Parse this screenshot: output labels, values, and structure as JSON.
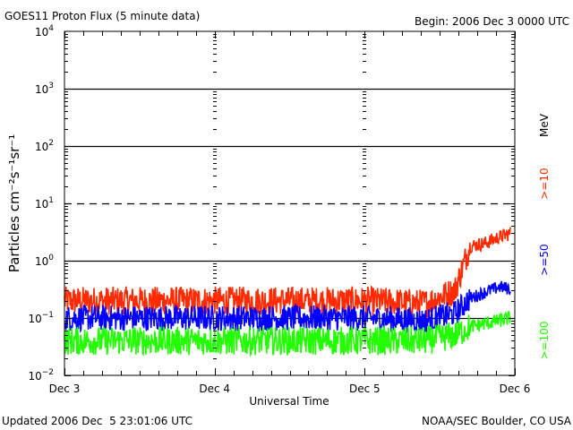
{
  "chart_data": {
    "type": "line",
    "title": "GOES11 Proton Flux (5 minute data)",
    "begin_label": "Begin: 2006 Dec 3 0000 UTC",
    "xlabel": "Universal Time",
    "ylabel": "Particles cm⁻²s⁻¹sr⁻¹",
    "yscale": "log",
    "ylim": [
      0.01,
      10000
    ],
    "y_ticks": [
      {
        "base": "10",
        "exp": "4"
      },
      {
        "base": "10",
        "exp": "3"
      },
      {
        "base": "10",
        "exp": "2"
      },
      {
        "base": "10",
        "exp": "1"
      },
      {
        "base": "10",
        "exp": "0"
      },
      {
        "base": "10",
        "exp": "−1"
      },
      {
        "base": "10",
        "exp": "−2"
      }
    ],
    "x_ticks": [
      "Dec 3",
      "Dec 4",
      "Dec 5",
      "Dec 6"
    ],
    "xlim_days": [
      0,
      3
    ],
    "threshold_lines": [
      {
        "value": 1000,
        "style": "solid"
      },
      {
        "value": 100,
        "style": "solid"
      },
      {
        "value": 10,
        "style": "dashed"
      },
      {
        "value": 1,
        "style": "solid"
      },
      {
        "value": 0.1,
        "style": "solid"
      }
    ],
    "legend_unit": "MeV",
    "series": [
      {
        "name": ">=10",
        "color": "#ff2a00",
        "x_days": [
          0,
          0.5,
          1.0,
          1.5,
          2.0,
          2.4,
          2.6,
          2.7,
          2.8,
          2.9,
          2.97
        ],
        "values": [
          0.2,
          0.2,
          0.2,
          0.2,
          0.2,
          0.18,
          0.3,
          1.8,
          2.0,
          2.6,
          3.0
        ]
      },
      {
        "name": ">=50",
        "color": "#0000ff",
        "x_days": [
          0,
          0.5,
          1.0,
          1.5,
          2.0,
          2.4,
          2.6,
          2.7,
          2.8,
          2.9,
          2.97
        ],
        "values": [
          0.1,
          0.1,
          0.1,
          0.1,
          0.1,
          0.09,
          0.12,
          0.22,
          0.28,
          0.35,
          0.32
        ]
      },
      {
        "name": ">=100",
        "color": "#22ff00",
        "x_days": [
          0,
          0.5,
          1.0,
          1.5,
          2.0,
          2.4,
          2.6,
          2.7,
          2.8,
          2.9,
          2.97
        ],
        "values": [
          0.04,
          0.04,
          0.04,
          0.04,
          0.04,
          0.04,
          0.05,
          0.07,
          0.08,
          0.09,
          0.1
        ]
      }
    ]
  },
  "footer": {
    "updated": "Updated 2006 Dec  5 23:01:06 UTC",
    "credit": "NOAA/SEC Boulder, CO USA"
  }
}
